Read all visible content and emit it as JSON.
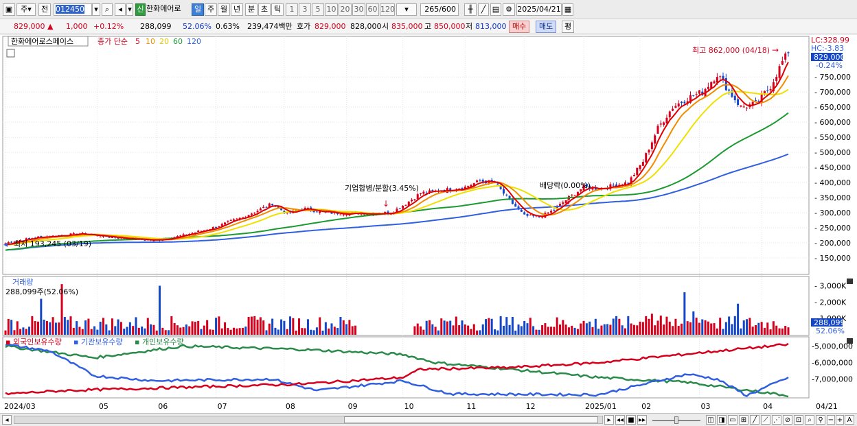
{
  "toolbar": {
    "period_unit": "주",
    "prev_label": "전",
    "code": "012450",
    "badge": "신",
    "name": "한화에어로",
    "periods": [
      "일",
      "주",
      "월",
      "년",
      "분",
      "초",
      "틱"
    ],
    "selected_period": "일",
    "intervals": [
      "1",
      "3",
      "5",
      "10",
      "20",
      "30",
      "60",
      "120"
    ],
    "count": "265",
    "count_total": "/600",
    "date": "2025/04/21"
  },
  "info": {
    "price": "829,000",
    "change": "1,000",
    "change_pct": "+0.12%",
    "volume": "288,099",
    "vol_ratio": "52.06%",
    "turnover": "0.63%",
    "amount": "239,474백만",
    "quote_label": "호가",
    "ask": "829,000",
    "bid": "828,000",
    "open_label": "시",
    "open": "835,000",
    "high_label": "고",
    "high": "850,000",
    "low_label": "저",
    "low": "813,000",
    "buy_label": "매수",
    "sell_label": "매도",
    "avg_label": "평"
  },
  "colors": {
    "up": "#d6001c",
    "down": "#1446c8",
    "ma5": "#e00000",
    "ma10": "#f08c00",
    "ma20": "#f0e000",
    "ma60": "#1a9a30",
    "ma120": "#3060e0"
  },
  "chart_data": [
    {
      "type": "candlestick",
      "title": "한화에어로스페이스",
      "legend": {
        "label": "종가 단순",
        "ma": [
          "5",
          "10",
          "20",
          "60",
          "120"
        ]
      },
      "price_range": [
        100000,
        880000
      ],
      "y_ticks": [
        "750,000",
        "700,000",
        "650,000",
        "600,000",
        "550,000",
        "500,000",
        "450,000",
        "400,000",
        "350,000",
        "300,000",
        "250,000",
        "200,000",
        "150,000"
      ],
      "y_values": [
        750000,
        700000,
        650000,
        600000,
        550000,
        500000,
        450000,
        400000,
        350000,
        300000,
        250000,
        200000,
        150000
      ],
      "x_labels": [
        "2024/03",
        "05",
        "06",
        "07",
        "08",
        "09",
        "10",
        "11",
        "12",
        "2025/01",
        "02",
        "03",
        "04"
      ],
      "x_label_bar": [
        0,
        31,
        51,
        71,
        94,
        115,
        134,
        155,
        175,
        195,
        214,
        234,
        255
      ],
      "last_date_label": "04/21",
      "lc": "LC:328.99",
      "hc": "HC:-3.83",
      "current_price_tag": "829,000",
      "current_change_tag": "-0.24%",
      "annotations": {
        "high": "최고 862,000 (04/18)",
        "low": "최저 193,245 (03/19)",
        "event1": "기업합병/분할(3.45%)",
        "event2": "배당락(0.00%)"
      },
      "close_keypoints": [
        [
          0,
          200000
        ],
        [
          10,
          218000
        ],
        [
          25,
          230000
        ],
        [
          40,
          215000
        ],
        [
          50,
          208000
        ],
        [
          60,
          225000
        ],
        [
          70,
          250000
        ],
        [
          80,
          285000
        ],
        [
          90,
          330000
        ],
        [
          95,
          295000
        ],
        [
          100,
          315000
        ],
        [
          108,
          300000
        ],
        [
          115,
          298000
        ],
        [
          125,
          298000
        ],
        [
          130,
          300000
        ],
        [
          135,
          330000
        ],
        [
          140,
          365000
        ],
        [
          148,
          375000
        ],
        [
          155,
          385000
        ],
        [
          160,
          405000
        ],
        [
          165,
          400000
        ],
        [
          170,
          340000
        ],
        [
          175,
          290000
        ],
        [
          180,
          285000
        ],
        [
          185,
          310000
        ],
        [
          190,
          350000
        ],
        [
          195,
          385000
        ],
        [
          200,
          380000
        ],
        [
          205,
          390000
        ],
        [
          210,
          400000
        ],
        [
          215,
          470000
        ],
        [
          220,
          580000
        ],
        [
          225,
          650000
        ],
        [
          230,
          680000
        ],
        [
          235,
          700000
        ],
        [
          240,
          760000
        ],
        [
          245,
          690000
        ],
        [
          248,
          650000
        ],
        [
          253,
          660000
        ],
        [
          258,
          720000
        ],
        [
          262,
          800000
        ],
        [
          264,
          829000
        ]
      ]
    },
    {
      "type": "bar",
      "title": "거래량",
      "current_label": "288,099주(52.06%)",
      "y_ticks": [
        "3,000K",
        "2,000K",
        "1,000K"
      ],
      "y_values": [
        3000000,
        2000000,
        1000000
      ],
      "current_tag": "288,099",
      "current_pct_tag": "52.06%",
      "spikes": [
        [
          19,
          3100000
        ],
        [
          52,
          3000000
        ],
        [
          12,
          2200000
        ],
        [
          229,
          2600000
        ],
        [
          247,
          1900000
        ]
      ]
    },
    {
      "type": "line",
      "series": [
        {
          "name": "외국인보유수량",
          "color": "#d6001c"
        },
        {
          "name": "기관보유수량",
          "color": "#3060e0"
        },
        {
          "name": "개인보유수량",
          "color": "#2a8a4a"
        }
      ],
      "y_ticks": [
        "-5,000,000",
        "-6,000,000",
        "-7,000,000"
      ],
      "y_values": [
        -5000000,
        -6000000,
        -7000000
      ],
      "y_range": [
        -8100000,
        -4600000
      ],
      "foreign": [
        [
          0,
          -7900000
        ],
        [
          20,
          -7700000
        ],
        [
          60,
          -7500000
        ],
        [
          100,
          -7300000
        ],
        [
          134,
          -6900000
        ],
        [
          140,
          -6400000
        ],
        [
          170,
          -6300000
        ],
        [
          200,
          -6000000
        ],
        [
          240,
          -5300000
        ],
        [
          264,
          -4900000
        ]
      ],
      "institution": [
        [
          0,
          -4900000
        ],
        [
          15,
          -5300000
        ],
        [
          30,
          -6800000
        ],
        [
          50,
          -7100000
        ],
        [
          90,
          -7000000
        ],
        [
          105,
          -7700000
        ],
        [
          134,
          -7100000
        ],
        [
          150,
          -7900000
        ],
        [
          200,
          -7950000
        ],
        [
          230,
          -6700000
        ],
        [
          240,
          -7000000
        ],
        [
          250,
          -8000000
        ],
        [
          264,
          -6900000
        ]
      ],
      "individual": [
        [
          0,
          -5000000
        ],
        [
          30,
          -5700000
        ],
        [
          60,
          -5000000
        ],
        [
          100,
          -5200000
        ],
        [
          134,
          -5500000
        ],
        [
          145,
          -6000000
        ],
        [
          170,
          -6400000
        ],
        [
          200,
          -6900000
        ],
        [
          230,
          -7200000
        ],
        [
          264,
          -8000000
        ]
      ]
    }
  ]
}
